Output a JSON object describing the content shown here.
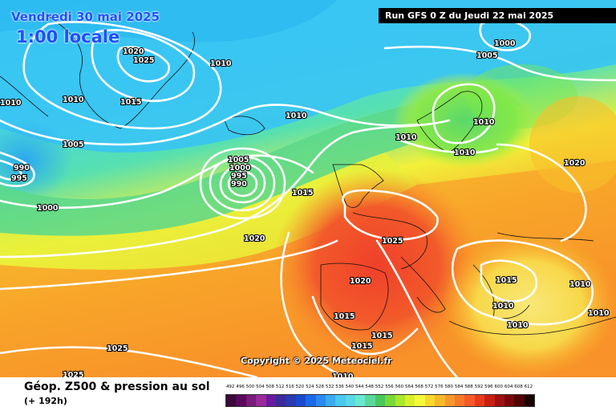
{
  "header": {
    "valid_date": "Vendredi 30 mai 2025",
    "local_time": "1:00 locale",
    "run_info": "Run GFS 0 Z du Jeudi 22 mai 2025"
  },
  "footer": {
    "product_title": "Géop. Z500 & pression au sol",
    "forecast_hour": "(+ 192h)",
    "copyright": "Copyright © 2025 Meteociel.fr"
  },
  "legend": {
    "labels": [
      "492",
      "496",
      "500",
      "504",
      "508",
      "512",
      "516",
      "520",
      "524",
      "528",
      "532",
      "536",
      "540",
      "544",
      "548",
      "552",
      "556",
      "560",
      "564",
      "568",
      "572",
      "576",
      "580",
      "584",
      "588",
      "592",
      "596",
      "600",
      "604",
      "608",
      "612"
    ],
    "colors": [
      "#3a0a3a",
      "#5a0a5a",
      "#7a1a7a",
      "#9a2a9a",
      "#6a1aa0",
      "#3a2a9a",
      "#2a3ab0",
      "#1a4ad0",
      "#1a6ae8",
      "#2a8af0",
      "#3aaaf0",
      "#4ac8f0",
      "#5ad8e8",
      "#6ae8d0",
      "#5ad89a",
      "#4ac85a",
      "#7ad83a",
      "#aae82a",
      "#d8f02a",
      "#f8f83a",
      "#f8d82a",
      "#f8b82a",
      "#f8982a",
      "#f8782a",
      "#f85a2a",
      "#e83a1a",
      "#c82010",
      "#a01010",
      "#780808",
      "#500404",
      "#1a0000"
    ]
  },
  "map": {
    "isobar_labels": [
      {
        "text": "1020"
      },
      {
        "text": "1025"
      },
      {
        "text": "1010"
      },
      {
        "text": "1010"
      },
      {
        "text": "1010"
      },
      {
        "text": "1015"
      },
      {
        "text": "1005"
      },
      {
        "text": "990"
      },
      {
        "text": "995"
      },
      {
        "text": "1000"
      },
      {
        "text": "1005"
      },
      {
        "text": "1000"
      },
      {
        "text": "995"
      },
      {
        "text": "990"
      },
      {
        "text": "1010"
      },
      {
        "text": "1015"
      },
      {
        "text": "1020"
      },
      {
        "text": "1000"
      },
      {
        "text": "1005"
      },
      {
        "text": "1010"
      },
      {
        "text": "1010"
      },
      {
        "text": "1010"
      },
      {
        "text": "1020"
      },
      {
        "text": "1025"
      },
      {
        "text": "1020"
      },
      {
        "text": "1015"
      },
      {
        "text": "1015"
      },
      {
        "text": "1015"
      },
      {
        "text": "1010"
      },
      {
        "text": "1015"
      },
      {
        "text": "1010"
      },
      {
        "text": "1010"
      },
      {
        "text": "1010"
      },
      {
        "text": "1010"
      },
      {
        "text": "1025"
      },
      {
        "text": "1025"
      }
    ]
  }
}
